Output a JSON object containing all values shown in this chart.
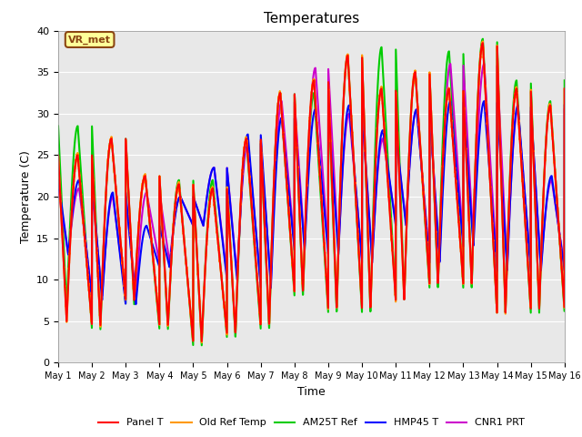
{
  "title": "Temperatures",
  "xlabel": "Time",
  "ylabel": "Temperature (C)",
  "ylim": [
    0,
    40
  ],
  "xlim": [
    0,
    15
  ],
  "fig_facecolor": "#ffffff",
  "plot_bg_color": "#e8e8e8",
  "annotation_text": "VR_met",
  "annotation_box_color": "#ffff99",
  "annotation_border_color": "#8b4513",
  "legend_labels": [
    "Panel T",
    "Old Ref Temp",
    "AM25T Ref",
    "HMP45 T",
    "CNR1 PRT"
  ],
  "line_colors": [
    "#ff0000",
    "#ff9900",
    "#00cc00",
    "#0000ff",
    "#cc00cc"
  ],
  "line_widths": [
    1.5,
    1.5,
    1.5,
    1.5,
    1.5
  ],
  "xtick_labels": [
    "May 1",
    "May 2",
    "May 3",
    "May 4",
    "May 5",
    "May 6",
    "May 7",
    "May 8",
    "May 9",
    "May 10",
    "May 11",
    "May 12",
    "May 13",
    "May 14",
    "May 15",
    "May 16"
  ],
  "xtick_positions": [
    0,
    1,
    2,
    3,
    4,
    5,
    6,
    7,
    8,
    9,
    10,
    11,
    12,
    13,
    14,
    15
  ],
  "ytick_positions": [
    0,
    5,
    10,
    15,
    20,
    25,
    30,
    35,
    40
  ],
  "daily_mins": [
    5.0,
    4.5,
    7.5,
    4.5,
    2.5,
    3.5,
    4.5,
    8.5,
    6.5,
    6.5,
    7.5,
    9.5,
    9.5,
    6.0,
    6.5
  ],
  "daily_maxs": [
    25.0,
    27.0,
    22.5,
    21.5,
    21.0,
    27.0,
    32.5,
    34.0,
    37.0,
    33.0,
    35.0,
    33.0,
    38.5,
    33.0,
    31.0
  ],
  "am25t_mins": [
    6.5,
    4.0,
    7.0,
    4.0,
    2.0,
    3.0,
    4.0,
    8.0,
    6.0,
    6.0,
    7.5,
    9.0,
    9.0,
    6.0,
    6.0
  ],
  "am25t_maxs": [
    28.5,
    27.0,
    22.5,
    22.0,
    22.0,
    26.5,
    32.5,
    32.5,
    37.0,
    38.0,
    35.0,
    37.5,
    39.0,
    34.0,
    31.5
  ],
  "blue_mins": [
    13.0,
    7.5,
    7.0,
    11.5,
    16.5,
    10.0,
    9.0,
    13.5,
    13.0,
    12.0,
    16.5,
    12.0,
    14.0,
    11.0,
    11.0
  ],
  "blue_maxs": [
    22.0,
    20.5,
    16.5,
    20.0,
    23.5,
    27.5,
    29.5,
    30.5,
    31.0,
    28.0,
    30.5,
    31.5,
    31.5,
    31.0,
    22.5
  ],
  "purple_mins": [
    13.0,
    8.0,
    8.0,
    12.0,
    16.5,
    10.5,
    9.5,
    14.0,
    13.5,
    12.5,
    17.0,
    12.5,
    14.5,
    11.5,
    11.5
  ],
  "purple_maxs": [
    21.0,
    20.0,
    20.5,
    20.0,
    23.5,
    26.5,
    31.5,
    35.5,
    30.0,
    27.0,
    30.5,
    36.0,
    36.0,
    30.5,
    22.0
  ],
  "points_per_day": 288
}
